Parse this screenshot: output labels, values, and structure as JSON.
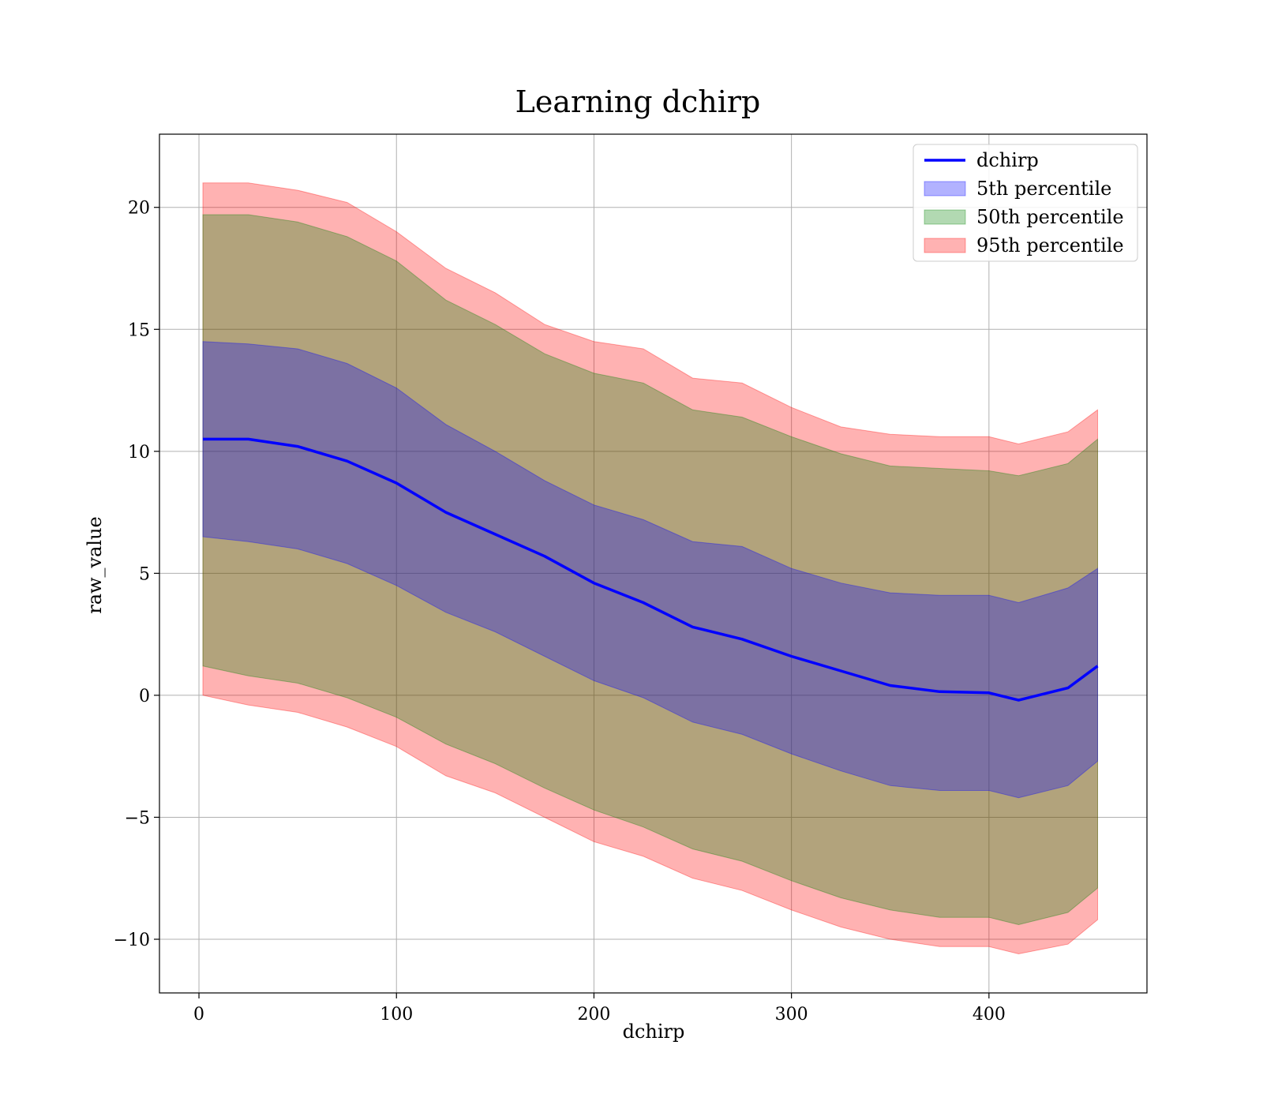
{
  "chart_data": {
    "type": "area",
    "title": "Learning dchirp",
    "xlabel": "dchirp",
    "ylabel": "raw_value",
    "xlim": [
      -20,
      480
    ],
    "ylim": [
      -12.2,
      23
    ],
    "xticks": [
      0,
      100,
      200,
      300,
      400
    ],
    "yticks": [
      -10,
      -5,
      0,
      5,
      10,
      15,
      20
    ],
    "grid": true,
    "legend_position": "top-right",
    "colors": {
      "line": "#0000ff",
      "p5": "#0000ff",
      "p50": "#008000",
      "p95": "#ff0000"
    },
    "x": [
      2,
      25,
      50,
      75,
      100,
      125,
      150,
      175,
      200,
      225,
      250,
      275,
      300,
      325,
      350,
      375,
      400,
      415,
      440,
      455
    ],
    "line": {
      "name": "dchirp",
      "values": [
        10.5,
        10.5,
        10.2,
        9.6,
        8.7,
        7.5,
        6.6,
        5.7,
        4.6,
        3.8,
        2.8,
        2.3,
        1.6,
        1.0,
        0.4,
        0.15,
        0.1,
        -0.2,
        0.3,
        1.2
      ]
    },
    "bands": [
      {
        "name": "95th percentile",
        "upper": [
          21.0,
          21.0,
          20.7,
          20.2,
          19.0,
          17.5,
          16.5,
          15.2,
          14.5,
          14.2,
          13.0,
          12.8,
          11.8,
          11.0,
          10.7,
          10.6,
          10.6,
          10.3,
          10.8,
          11.7
        ],
        "lower": [
          0.0,
          -0.4,
          -0.7,
          -1.3,
          -2.1,
          -3.3,
          -4.0,
          -5.0,
          -6.0,
          -6.6,
          -7.5,
          -8.0,
          -8.8,
          -9.5,
          -10.0,
          -10.3,
          -10.3,
          -10.6,
          -10.2,
          -9.2
        ]
      },
      {
        "name": "50th percentile",
        "upper": [
          19.7,
          19.7,
          19.4,
          18.8,
          17.8,
          16.2,
          15.2,
          14.0,
          13.2,
          12.8,
          11.7,
          11.4,
          10.6,
          9.9,
          9.4,
          9.3,
          9.2,
          9.0,
          9.5,
          10.5
        ],
        "lower": [
          1.2,
          0.8,
          0.5,
          -0.1,
          -0.9,
          -2.0,
          -2.8,
          -3.8,
          -4.7,
          -5.4,
          -6.3,
          -6.8,
          -7.6,
          -8.3,
          -8.8,
          -9.1,
          -9.1,
          -9.4,
          -8.9,
          -7.9
        ]
      },
      {
        "name": "5th percentile",
        "upper": [
          14.5,
          14.4,
          14.2,
          13.6,
          12.6,
          11.1,
          10.0,
          8.8,
          7.8,
          7.2,
          6.3,
          6.1,
          5.2,
          4.6,
          4.2,
          4.1,
          4.1,
          3.8,
          4.4,
          5.2
        ],
        "lower": [
          6.5,
          6.3,
          6.0,
          5.4,
          4.5,
          3.4,
          2.6,
          1.6,
          0.6,
          -0.1,
          -1.1,
          -1.6,
          -2.4,
          -3.1,
          -3.7,
          -3.9,
          -3.9,
          -4.2,
          -3.7,
          -2.7
        ]
      }
    ],
    "legend": [
      "dchirp",
      "5th percentile",
      "50th percentile",
      "95th percentile"
    ]
  }
}
